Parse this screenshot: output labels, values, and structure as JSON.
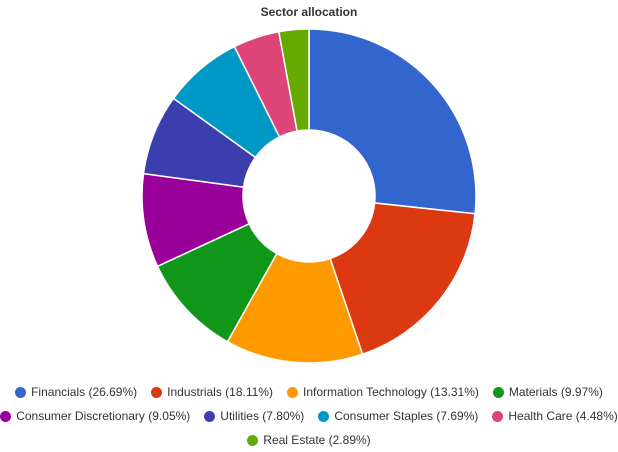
{
  "chart_data": {
    "type": "pie",
    "subtype": "donut",
    "title": "Sector allocation",
    "legend_position": "bottom",
    "slices": [
      {
        "label": "Financials",
        "value": 26.69,
        "legend_text": "Financials (26.69%)",
        "color": "#3366cc"
      },
      {
        "label": "Industrials",
        "value": 18.11,
        "legend_text": "Industrials (18.11%)",
        "color": "#dc3912"
      },
      {
        "label": "Information Technology",
        "value": 13.31,
        "legend_text": "Information Technology (13.31%)",
        "color": "#ff9900"
      },
      {
        "label": "Materials",
        "value": 9.97,
        "legend_text": "Materials (9.97%)",
        "color": "#109618"
      },
      {
        "label": "Consumer Discretionary",
        "value": 9.05,
        "legend_text": "Consumer Discretionary (9.05%)",
        "color": "#990099"
      },
      {
        "label": "Utilities",
        "value": 7.8,
        "legend_text": "Utilities (7.80%)",
        "color": "#3b3eac"
      },
      {
        "label": "Consumer Staples",
        "value": 7.69,
        "legend_text": "Consumer Staples (7.69%)",
        "color": "#0099c6"
      },
      {
        "label": "Health Care",
        "value": 4.48,
        "legend_text": "Health Care (4.48%)",
        "color": "#dd4477"
      },
      {
        "label": "Real Estate",
        "value": 2.89,
        "legend_text": "Real Estate (2.89%)",
        "color": "#66aa00"
      }
    ]
  }
}
